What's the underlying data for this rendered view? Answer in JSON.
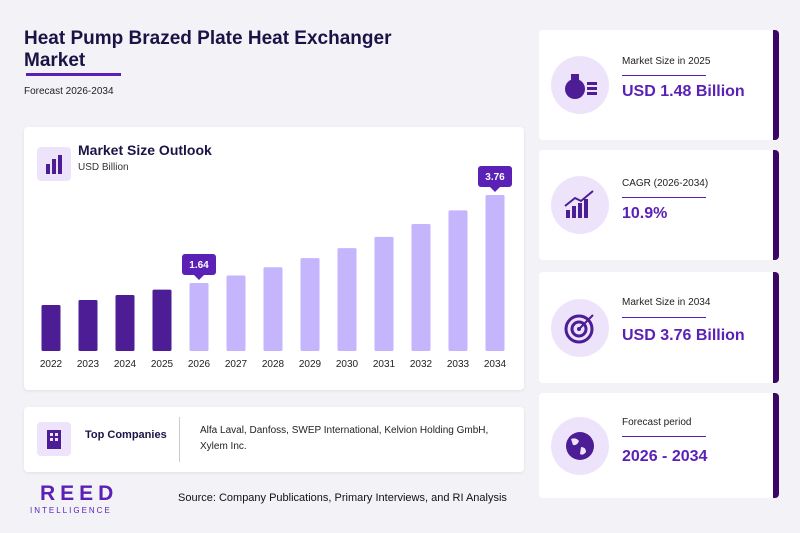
{
  "header": {
    "title": "Heat Pump Brazed Plate Heat Exchanger Market",
    "subtitle": "Forecast 2026-2034"
  },
  "chart_data": {
    "type": "bar",
    "title": "Market Size Outlook",
    "subtitle": "USD Billion",
    "categories": [
      "2022",
      "2023",
      "2024",
      "2025",
      "2026",
      "2027",
      "2028",
      "2029",
      "2030",
      "2031",
      "2032",
      "2033",
      "2034"
    ],
    "values": [
      1.11,
      1.23,
      1.35,
      1.48,
      1.64,
      1.82,
      2.02,
      2.24,
      2.48,
      2.75,
      3.06,
      3.39,
      3.76
    ],
    "value_labels": [
      null,
      null,
      null,
      null,
      "1.64",
      null,
      null,
      null,
      null,
      null,
      null,
      null,
      "3.76"
    ],
    "colors": [
      "#4c1d95",
      "#4c1d95",
      "#4c1d95",
      "#4c1d95",
      "#c4b5fd",
      "#c4b5fd",
      "#c4b5fd",
      "#c4b5fd",
      "#c4b5fd",
      "#c4b5fd",
      "#c4b5fd",
      "#c4b5fd",
      "#c4b5fd"
    ]
  },
  "companies": {
    "label": "Top Companies",
    "text": "Alfa Laval, Danfoss, SWEP International, Kelvion Holding GmbH, Xylem Inc."
  },
  "source": "Source: Company Publications, Primary Interviews, and RI Analysis",
  "logo": {
    "name": "REED",
    "tagline": "INTELLIGENCE"
  },
  "kpis": [
    {
      "label": "Market Size in 2025",
      "value": "USD 1.48 Billion"
    },
    {
      "label": "CAGR (2026-2034)",
      "value": "10.9%"
    },
    {
      "label": "Market Size in 2034",
      "value": "USD 3.76 Billion"
    },
    {
      "label": "Forecast period",
      "value": "2026 - 2034"
    }
  ]
}
